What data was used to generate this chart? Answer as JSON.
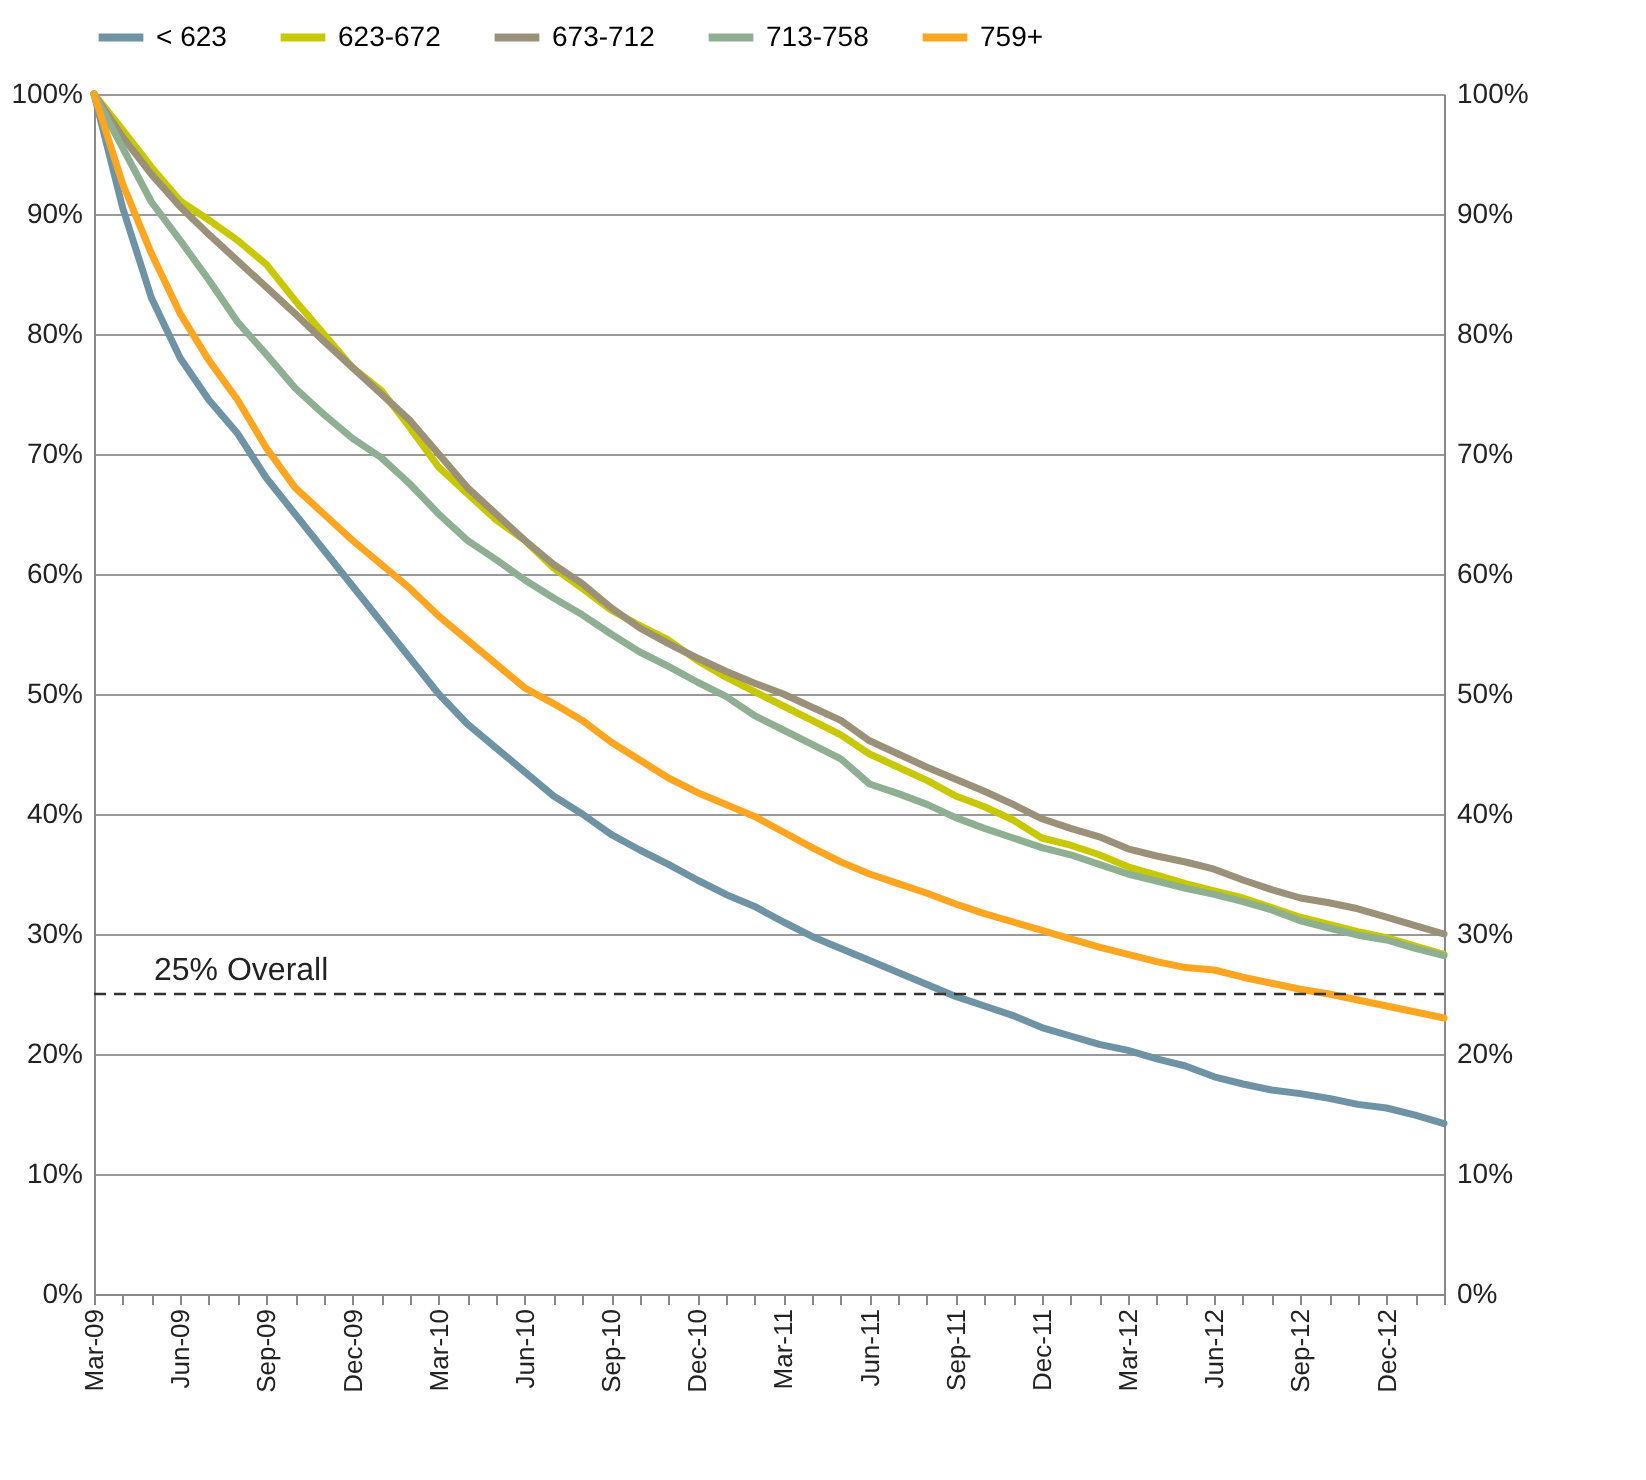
{
  "chart_data": {
    "type": "line",
    "categories": [
      "Mar-09",
      null,
      null,
      "Jun-09",
      null,
      null,
      "Sep-09",
      null,
      null,
      "Dec-09",
      null,
      null,
      "Mar-10",
      null,
      null,
      "Jun-10",
      null,
      null,
      "Sep-10",
      null,
      null,
      "Dec-10",
      null,
      null,
      "Mar-11",
      null,
      null,
      "Jun-11",
      null,
      null,
      "Sep-11",
      null,
      null,
      "Dec-11",
      null,
      null,
      "Mar-12",
      null,
      null,
      "Jun-12",
      null,
      null,
      "Sep-12",
      null,
      null,
      "Dec-12",
      null,
      null
    ],
    "series": [
      {
        "name": "< 623",
        "color": "#6d93a4",
        "values": [
          100,
          90.5,
          83,
          78,
          74.5,
          71.7,
          68,
          65,
          62,
          59,
          56,
          53,
          50,
          47.5,
          45.5,
          43.5,
          41.5,
          40,
          38.3,
          37,
          35.8,
          34.5,
          33.3,
          32.3,
          31,
          29.8,
          28.8,
          27.8,
          26.8,
          25.8,
          24.8,
          24,
          23.2,
          22.2,
          21.5,
          20.8,
          20.3,
          19.6,
          19,
          18.1,
          17.5,
          17,
          16.7,
          16.3,
          15.8,
          15.5,
          14.9,
          14.2
        ]
      },
      {
        "name": "623-672",
        "color": "#c8c800",
        "values": [
          100,
          97,
          93.9,
          91.1,
          89.5,
          87.8,
          85.8,
          82.8,
          80,
          77.2,
          75.3,
          72.2,
          68.9,
          66.7,
          64.5,
          62.8,
          60.5,
          58.8,
          57,
          55.7,
          54.5,
          52.8,
          51.4,
          50.2,
          49,
          47.8,
          46.6,
          45,
          43.9,
          42.8,
          41.5,
          40.6,
          39.5,
          38,
          37.4,
          36.6,
          35.6,
          34.9,
          34.2,
          33.6,
          33,
          32.2,
          31.4,
          30.8,
          30.2,
          29.7,
          29,
          28.3
        ]
      },
      {
        "name": "673-712",
        "color": "#9a9178",
        "values": [
          100,
          96.4,
          93.3,
          90.6,
          88.3,
          86.1,
          83.9,
          81.7,
          79.4,
          77.2,
          75,
          72.8,
          70,
          67.2,
          65,
          62.8,
          60.8,
          59.2,
          57.2,
          55.5,
          54.2,
          53,
          51.9,
          50.9,
          50,
          48.9,
          47.8,
          46.1,
          45,
          43.9,
          42.9,
          41.9,
          40.8,
          39.6,
          38.8,
          38.1,
          37.1,
          36.5,
          36,
          35.4,
          34.5,
          33.7,
          33,
          32.6,
          32.1,
          31.4,
          30.7,
          30
        ]
      },
      {
        "name": "713-758",
        "color": "#8faf92",
        "values": [
          100,
          95.5,
          91,
          87.8,
          84.5,
          81,
          78.3,
          75.5,
          73.3,
          71.3,
          69.7,
          67.5,
          65,
          62.8,
          61.2,
          59.5,
          58,
          56.6,
          55,
          53.5,
          52.3,
          51,
          49.8,
          48.2,
          47,
          45.8,
          44.6,
          42.5,
          41.7,
          40.8,
          39.7,
          38.8,
          38,
          37.2,
          36.6,
          35.8,
          35,
          34.4,
          33.8,
          33.3,
          32.7,
          32,
          31.1,
          30.5,
          29.9,
          29.5,
          28.8,
          28.2
        ]
      },
      {
        "name": "759+",
        "color": "#ffa520",
        "values": [
          100,
          92.5,
          86.7,
          81.7,
          77.8,
          74.5,
          70.5,
          67.2,
          65,
          62.8,
          60.8,
          58.8,
          56.5,
          54.5,
          52.5,
          50.5,
          49.2,
          47.8,
          46,
          44.5,
          43,
          41.8,
          40.8,
          39.8,
          38.5,
          37.2,
          36,
          35,
          34.2,
          33.4,
          32.5,
          31.7,
          31,
          30.3,
          29.6,
          28.9,
          28.3,
          27.7,
          27.2,
          27,
          26.4,
          25.9,
          25.4,
          25,
          24.5,
          24,
          23.5,
          23
        ]
      }
    ],
    "ylim": [
      0,
      100
    ],
    "yticks": [
      {
        "value": 0,
        "label": "0%"
      },
      {
        "value": 10,
        "label": "10%"
      },
      {
        "value": 20,
        "label": "20%"
      },
      {
        "value": 30,
        "label": "30%"
      },
      {
        "value": 40,
        "label": "40%"
      },
      {
        "value": 50,
        "label": "50%"
      },
      {
        "value": 60,
        "label": "60%"
      },
      {
        "value": 70,
        "label": "70%"
      },
      {
        "value": 80,
        "label": "80%"
      },
      {
        "value": 90,
        "label": "90%"
      },
      {
        "value": 100,
        "label": "100%"
      }
    ],
    "y2lim": [
      0,
      100
    ],
    "y2ticks": [
      {
        "value": 0,
        "label": "0%"
      },
      {
        "value": 10,
        "label": "10%"
      },
      {
        "value": 20,
        "label": "20%"
      },
      {
        "value": 30,
        "label": "30%"
      },
      {
        "value": 40,
        "label": "40%"
      },
      {
        "value": 50,
        "label": "50%"
      },
      {
        "value": 60,
        "label": "60%"
      },
      {
        "value": 70,
        "label": "70%"
      },
      {
        "value": 80,
        "label": "80%"
      },
      {
        "value": 90,
        "label": "90%"
      },
      {
        "value": 100,
        "label": "100%"
      }
    ],
    "ref_lines": [
      {
        "axis": "y",
        "value": 25,
        "label": "25% Overall",
        "color": "#333333",
        "line_style": "dashed"
      }
    ],
    "grid": "y",
    "legend": "top",
    "marker": "none",
    "line_style": "solid"
  }
}
